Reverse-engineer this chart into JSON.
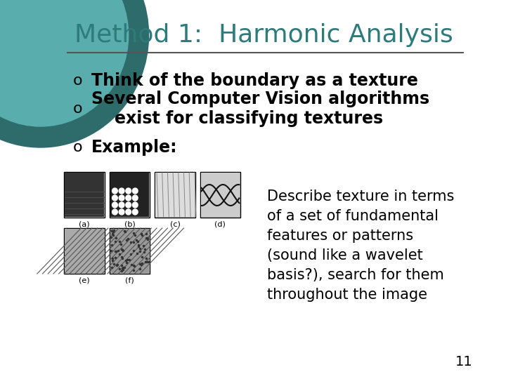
{
  "title": "Method 1:  Harmonic Analysis",
  "title_color": "#2e7b7b",
  "title_fontsize": 26,
  "background_color": "#f0f0f0",
  "slide_bg": "#ffffff",
  "bullet_color": "#000000",
  "bullet_fontsize": 17,
  "bullets": [
    "Think of the boundary as a texture",
    "Several Computer Vision algorithms\n    exist for classifying textures",
    "Example:"
  ],
  "bullet_symbol": "o",
  "description_text": "Describe texture in terms\nof a set of fundamental\nfeatures or patterns\n(sound like a wavelet\nbasis?), search for them\nthroughout the image",
  "description_fontsize": 15,
  "page_number": "11",
  "circle_color": "#3a9a9a",
  "circle_bg": "#7bbcbc",
  "line_color": "#555555"
}
